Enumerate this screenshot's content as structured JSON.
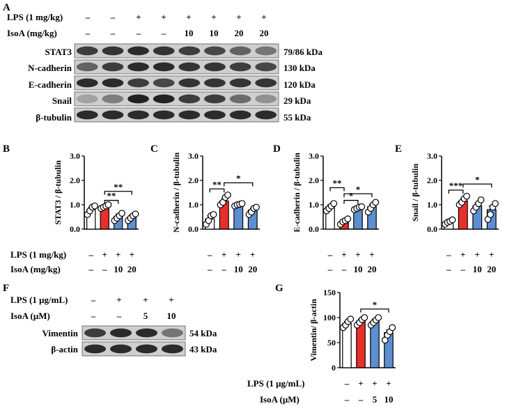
{
  "panels": {
    "A": {
      "letter": "A",
      "rows": [
        {
          "label": "LPS (1 mg/kg)",
          "values": [
            "–",
            "–",
            "+",
            "+",
            "+",
            "+",
            "+",
            "+"
          ]
        },
        {
          "label": "IsoA (mg/kg)",
          "values": [
            "–",
            "–",
            "–",
            "–",
            "10",
            "10",
            "20",
            "20"
          ]
        }
      ],
      "blots": [
        {
          "name": "STAT3",
          "kda": "79/86 kDa"
        },
        {
          "name": "N-cadherin",
          "kda": "130 kDa"
        },
        {
          "name": "E-cadherin",
          "kda": "120 kDa"
        },
        {
          "name": "Snail",
          "kda": "29 kDa"
        },
        {
          "name": "β-tubulin",
          "kda": "55 kDa"
        }
      ],
      "band_intensity": [
        [
          0.75,
          0.8,
          0.85,
          0.8,
          0.75,
          0.7,
          0.55,
          0.45
        ],
        [
          0.55,
          0.75,
          0.85,
          0.85,
          0.8,
          0.8,
          0.75,
          0.7
        ],
        [
          0.85,
          0.85,
          0.75,
          0.7,
          0.8,
          0.8,
          0.8,
          0.8
        ],
        [
          0.2,
          0.4,
          0.9,
          0.9,
          0.75,
          0.75,
          0.5,
          0.3
        ],
        [
          0.85,
          0.85,
          0.85,
          0.85,
          0.85,
          0.85,
          0.85,
          0.85
        ]
      ]
    },
    "F": {
      "letter": "F",
      "rows": [
        {
          "label": "LPS (1 μg/mL)",
          "values": [
            "–",
            "+",
            "+",
            "+"
          ]
        },
        {
          "label": "IsoA (μM)",
          "values": [
            "–",
            "–",
            "5",
            "10"
          ]
        }
      ],
      "blots": [
        {
          "name": "Vimentin",
          "kda": "54 kDa"
        },
        {
          "name": "β-actin",
          "kda": "43 kDa"
        }
      ],
      "band_intensity": [
        [
          0.75,
          0.85,
          0.85,
          0.45
        ],
        [
          0.85,
          0.85,
          0.85,
          0.85
        ]
      ]
    }
  },
  "chart_data": [
    {
      "type": "bar",
      "letter": "B",
      "ylabel": "STAT3 / β-tubulin",
      "ylim": [
        0,
        3.0
      ],
      "ticks": [
        "0.0",
        "1.0",
        "2.0",
        "3.0"
      ],
      "values": [
        0.8,
        0.92,
        0.52,
        0.5
      ],
      "errors": [
        0.1,
        0.05,
        0.1,
        0.08
      ],
      "points": [
        [
          0.6,
          0.75,
          0.9,
          0.95
        ],
        [
          0.85,
          0.9,
          0.95,
          1.0
        ],
        [
          0.35,
          0.45,
          0.55,
          0.65
        ],
        [
          0.35,
          0.45,
          0.55,
          0.62
        ]
      ],
      "colors": [
        "#ffffff",
        "#e8302a",
        "#5b8fd0",
        "#5b8fd0"
      ],
      "rows": [
        {
          "label": "LPS (1 mg/kg)",
          "values": [
            "–",
            "+",
            "+",
            "+"
          ]
        },
        {
          "label": "IsoA (mg/kg)",
          "values": [
            "–",
            "–",
            "10",
            "20"
          ]
        }
      ],
      "sig": [
        {
          "from": 1,
          "to": 2,
          "text": "**",
          "level": 1.18
        },
        {
          "from": 1,
          "to": 3,
          "text": "**",
          "level": 1.55
        }
      ]
    },
    {
      "type": "bar",
      "letter": "C",
      "ylabel": "N-cadherin / β-tubulin",
      "ylim": [
        0,
        3.0
      ],
      "ticks": [
        "0.0",
        "1.0",
        "2.0",
        "3.0"
      ],
      "values": [
        0.42,
        1.15,
        1.0,
        0.78
      ],
      "errors": [
        0.12,
        0.12,
        0.05,
        0.08
      ],
      "points": [
        [
          0.2,
          0.35,
          0.55,
          0.6
        ],
        [
          1.0,
          1.1,
          1.3,
          1.4
        ],
        [
          0.95,
          1.0,
          1.02,
          1.05
        ],
        [
          0.6,
          0.7,
          0.85,
          0.9
        ]
      ],
      "colors": [
        "#ffffff",
        "#e8302a",
        "#5b8fd0",
        "#5b8fd0"
      ],
      "rows": [
        {
          "label": "",
          "values": [
            "–",
            "+",
            "+",
            "+"
          ]
        },
        {
          "label": "",
          "values": [
            "–",
            "–",
            "10",
            "20"
          ]
        }
      ],
      "sig": [
        {
          "from": 0,
          "to": 1,
          "text": "**",
          "level": 1.65
        },
        {
          "from": 1,
          "to": 3,
          "text": "*",
          "level": 1.9
        }
      ]
    },
    {
      "type": "bar",
      "letter": "D",
      "ylabel": "E-cadherin / β-tubulin",
      "ylim": [
        0,
        3.0
      ],
      "ticks": [
        "0.0",
        "1.0",
        "2.0",
        "3.0"
      ],
      "values": [
        0.92,
        0.32,
        0.85,
        0.92
      ],
      "errors": [
        0.08,
        0.06,
        0.05,
        0.1
      ],
      "points": [
        [
          0.75,
          0.85,
          0.95,
          1.05
        ],
        [
          0.2,
          0.3,
          0.35,
          0.42
        ],
        [
          0.8,
          0.85,
          0.9,
          0.92
        ],
        [
          0.7,
          0.85,
          1.0,
          1.1
        ]
      ],
      "colors": [
        "#ffffff",
        "#e8302a",
        "#5b8fd0",
        "#5b8fd0"
      ],
      "rows": [
        {
          "label": "",
          "values": [
            "–",
            "+",
            "+",
            "+"
          ]
        },
        {
          "label": "",
          "values": [
            "–",
            "–",
            "10",
            "20"
          ]
        }
      ],
      "sig": [
        {
          "from": 0,
          "to": 1,
          "text": "**",
          "level": 1.7
        },
        {
          "from": 1,
          "to": 2,
          "text": "*",
          "level": 1.18
        },
        {
          "from": 1,
          "to": 3,
          "text": "*",
          "level": 1.45
        }
      ]
    },
    {
      "type": "bar",
      "letter": "E",
      "ylabel": "Snail / β-tubulin",
      "ylim": [
        0,
        3.0
      ],
      "ticks": [
        "0.0",
        "1.0",
        "2.0",
        "3.0"
      ],
      "values": [
        0.3,
        1.15,
        0.95,
        0.8
      ],
      "errors": [
        0.06,
        0.1,
        0.12,
        0.15
      ],
      "points": [
        [
          0.2,
          0.28,
          0.32,
          0.38
        ],
        [
          1.0,
          1.1,
          1.25,
          1.35
        ],
        [
          0.75,
          0.9,
          1.05,
          1.2
        ],
        [
          0.4,
          0.6,
          0.9,
          1.05
        ]
      ],
      "colors": [
        "#ffffff",
        "#e8302a",
        "#5b8fd0",
        "#5b8fd0"
      ],
      "rows": [
        {
          "label": "",
          "values": [
            "–",
            "+",
            "+",
            "+"
          ]
        },
        {
          "label": "",
          "values": [
            "–",
            "–",
            "10",
            "20"
          ]
        }
      ],
      "sig": [
        {
          "from": 0,
          "to": 1,
          "text": "***",
          "level": 1.6
        },
        {
          "from": 1,
          "to": 3,
          "text": "*",
          "level": 1.85
        }
      ]
    },
    {
      "type": "bar",
      "letter": "G",
      "ylabel": "Vimentin/ β-actin",
      "ylim": [
        0,
        150
      ],
      "ticks": [
        "0",
        "50",
        "100",
        "150"
      ],
      "values": [
        88,
        93,
        92,
        70
      ],
      "errors": [
        4,
        4,
        5,
        5
      ],
      "points": [
        [
          80,
          85,
          92,
          97
        ],
        [
          85,
          90,
          96,
          100
        ],
        [
          85,
          90,
          95,
          100
        ],
        [
          55,
          65,
          72,
          80
        ]
      ],
      "colors": [
        "#ffffff",
        "#e8302a",
        "#5b8fd0",
        "#5b8fd0"
      ],
      "rows": [
        {
          "label": "LPS (1 μg/mL)",
          "values": [
            "–",
            "+",
            "+",
            "+"
          ]
        },
        {
          "label": "IsoA (μM)",
          "values": [
            "–",
            "–",
            "5",
            "10"
          ]
        }
      ],
      "sig": [
        {
          "from": 1,
          "to": 3,
          "text": "*",
          "level": 117
        }
      ]
    }
  ]
}
